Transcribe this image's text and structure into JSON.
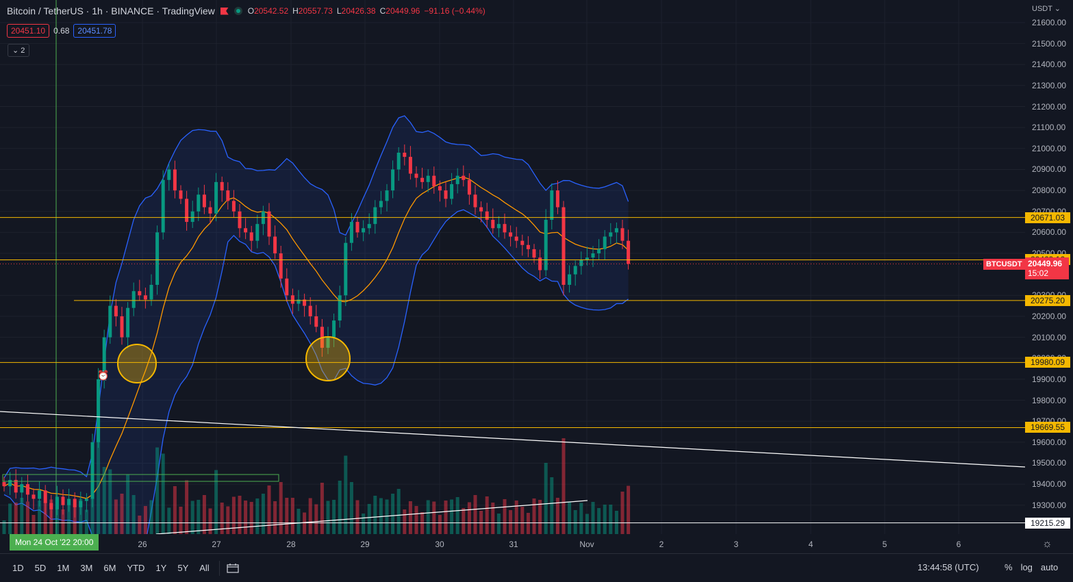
{
  "header": {
    "title": "Bitcoin / TetherUS · 1h · BINANCE · TradingView",
    "ohlc": [
      {
        "k": "O",
        "v": "20542.52"
      },
      {
        "k": "H",
        "v": "20557.73"
      },
      {
        "k": "L",
        "v": "20426.38"
      },
      {
        "k": "C",
        "v": "20449.96"
      },
      {
        "k": "",
        "v": "−91.16 (−0.44%)"
      }
    ],
    "sell_price": "20451.10",
    "spread": "0.68",
    "buy_price": "20451.78",
    "indicators_toggle": "⌄ 2"
  },
  "price_scale": {
    "currency": "USDT ⌄",
    "ticks": [
      "21600.00",
      "21500.00",
      "21400.00",
      "21300.00",
      "21200.00",
      "21100.00",
      "21000.00",
      "20900.00",
      "20800.00",
      "20700.00",
      "20600.00",
      "20500.00",
      "20300.00",
      "20200.00",
      "20100.00",
      "20000.00",
      "19900.00",
      "19800.00",
      "19700.00",
      "19600.00",
      "19500.00",
      "19400.00",
      "19300.00"
    ]
  },
  "hlines": [
    {
      "price": "20671.03",
      "color": "#f5b800"
    },
    {
      "price": "20469.16",
      "color": "#f5b800"
    },
    {
      "price": "20275.20",
      "color": "#f5b800"
    },
    {
      "price": "19980.09",
      "color": "#f5b800"
    },
    {
      "price": "19669.55",
      "color": "#f5b800"
    },
    {
      "price": "19215.29",
      "color": "#ffffff"
    }
  ],
  "current": {
    "symbol": "BTCUSDT",
    "price": "20449.96",
    "countdown": "15:02"
  },
  "time_axis": {
    "crosshair_date": "Mon 24 Oct '22   20:00",
    "labels": [
      "26",
      "27",
      "28",
      "29",
      "30",
      "31",
      "Nov",
      "2",
      "3",
      "4",
      "5",
      "6"
    ]
  },
  "bottom": {
    "ranges": [
      "1D",
      "5D",
      "1M",
      "3M",
      "6M",
      "YTD",
      "1Y",
      "5Y",
      "All"
    ],
    "clock": "13:44:58 (UTC)",
    "options": [
      "%",
      "log",
      "auto"
    ]
  },
  "colors": {
    "up": "#089981",
    "down": "#f23645",
    "band": "#2962ff",
    "ma": "#ff9800",
    "level": "#f5b800"
  },
  "chart_data": {
    "type": "candlestick",
    "symbol": "BTCUSDT",
    "interval": "1h",
    "ylim": [
      19150,
      21650
    ],
    "close": [
      19390,
      19420,
      19360,
      19400,
      19350,
      19330,
      19370,
      19310,
      19280,
      19340,
      19300,
      19330,
      19290,
      19320,
      19330,
      19600,
      19900,
      20100,
      20250,
      20200,
      20100,
      20240,
      20320,
      20300,
      20280,
      20350,
      20600,
      20850,
      20900,
      20800,
      20760,
      20650,
      20700,
      20780,
      20720,
      20690,
      20840,
      20800,
      20750,
      20700,
      20620,
      20600,
      20560,
      20640,
      20700,
      20580,
      20500,
      20380,
      20300,
      20260,
      20280,
      20250,
      20200,
      20150,
      20050,
      20100,
      20180,
      20300,
      20550,
      20650,
      20600,
      20620,
      20640,
      20720,
      20750,
      20800,
      20900,
      20980,
      20960,
      20880,
      20860,
      20840,
      20870,
      20820,
      20800,
      20760,
      20830,
      20870,
      20850,
      20780,
      20720,
      20700,
      20660,
      20620,
      20640,
      20600,
      20580,
      20560,
      20540,
      20520,
      20480,
      20420,
      20660,
      20800,
      20720,
      20350,
      20400,
      20440,
      20470,
      20480,
      20500,
      20520,
      20580,
      20600,
      20620,
      20560,
      20449.96
    ],
    "volume_note": "volume histogram at bottom of pane",
    "levels": [
      20671.03,
      20469.16,
      20275.2,
      19980.09,
      19669.55,
      19215.29
    ]
  }
}
